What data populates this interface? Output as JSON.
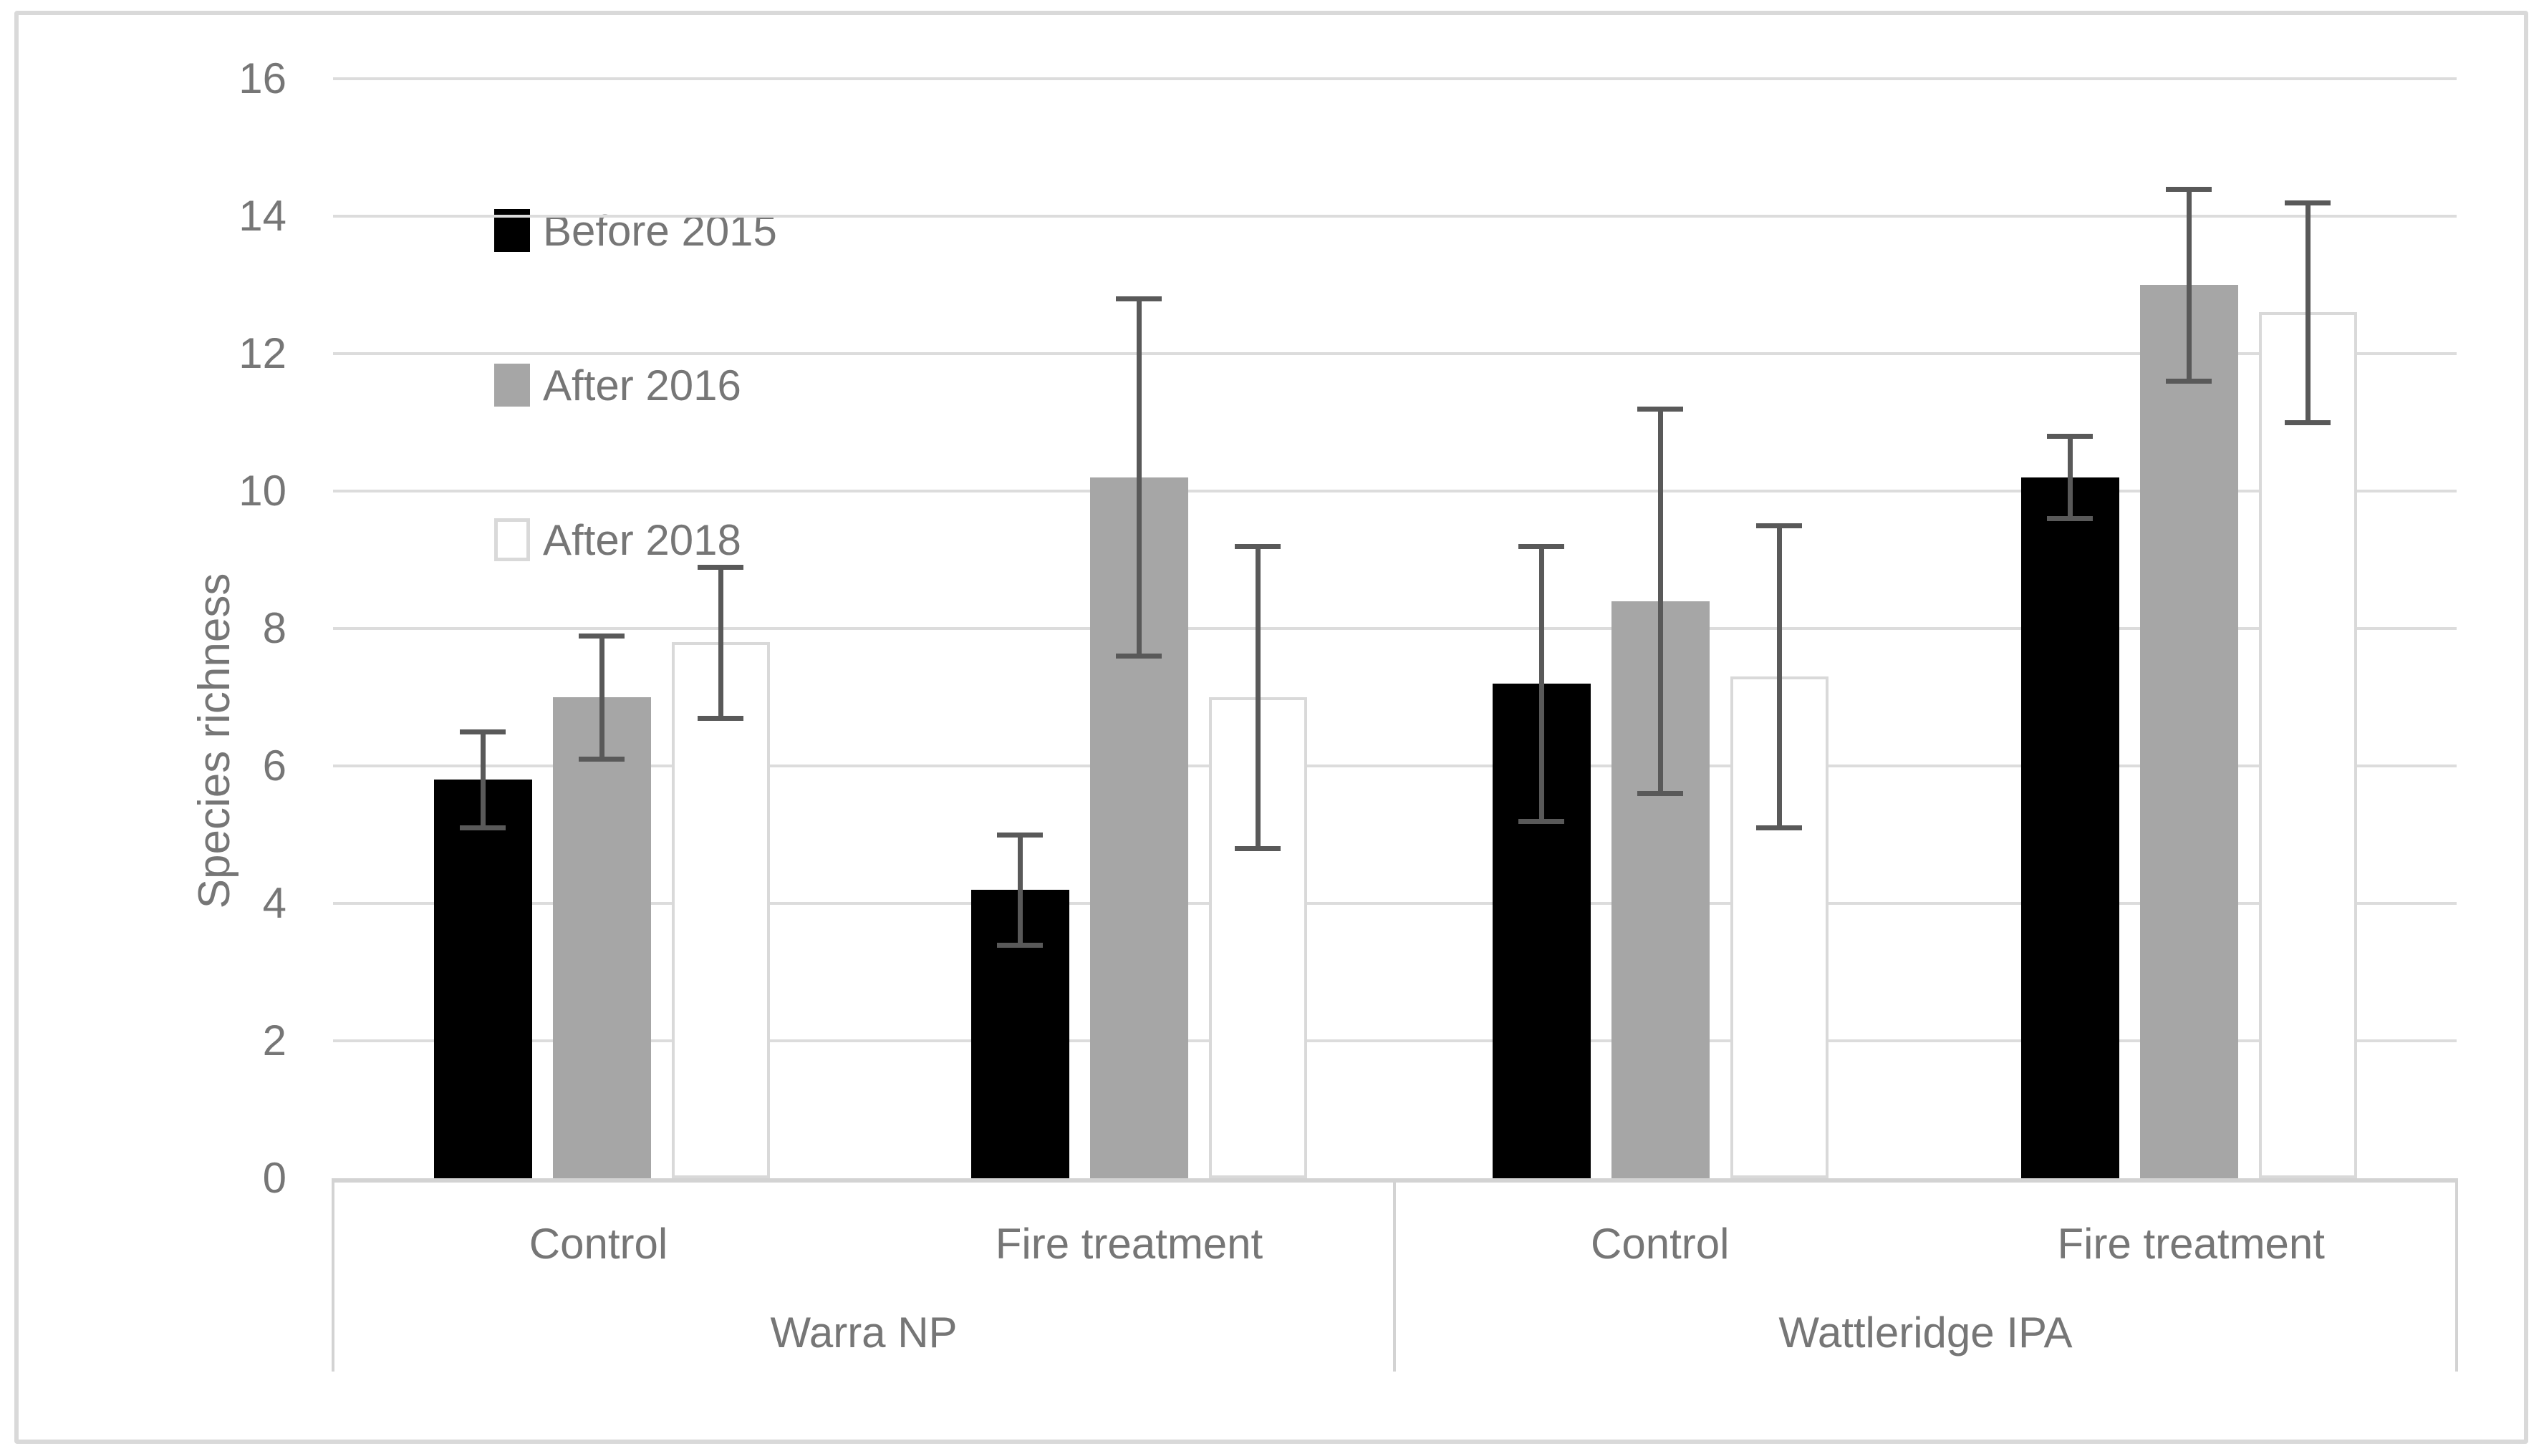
{
  "figure": {
    "border_color": "#d9d9d9",
    "background": "#ffffff"
  },
  "y_axis": {
    "title": "Species richness",
    "min": 0,
    "max": 16,
    "step": 2,
    "tick_labels": [
      "0",
      "2",
      "4",
      "6",
      "8",
      "10",
      "12",
      "14",
      "16"
    ]
  },
  "x_axis": {
    "sites": [
      {
        "label": "Warra NP",
        "treatments": [
          "Control",
          "Fire treatment"
        ]
      },
      {
        "label": "Wattleridge IPA",
        "treatments": [
          "Control",
          "Fire treatment"
        ]
      }
    ]
  },
  "legend": {
    "items": [
      {
        "label": "Before 2015",
        "fill": "#000000",
        "border": "#000000"
      },
      {
        "label": "After 2016",
        "fill": "#a6a6a6",
        "border": "#a6a6a6"
      },
      {
        "label": "After 2018",
        "fill": "#ffffff",
        "border": "#d9d9d9"
      }
    ]
  },
  "colors": {
    "gridline": "#dcdcdc",
    "axis_line": "#d3d3d3",
    "divider": "#d3d3d3",
    "error_bar": "#595959",
    "text": "#767676"
  },
  "chart_data": {
    "type": "bar",
    "title": "",
    "xlabel": "",
    "ylabel": "Species richness",
    "ylim": [
      0,
      16
    ],
    "grid": true,
    "error_bars": true,
    "legend_position": "top-left-inside",
    "categories": [
      "Warra NP - Control",
      "Warra NP - Fire treatment",
      "Wattleridge IPA - Control",
      "Wattleridge IPA - Fire treatment"
    ],
    "series": [
      {
        "name": "Before 2015",
        "values": [
          5.8,
          4.2,
          7.2,
          10.2
        ],
        "error_low": [
          5.1,
          3.4,
          5.2,
          9.6
        ],
        "error_high": [
          6.5,
          5.0,
          9.2,
          10.8
        ]
      },
      {
        "name": "After 2016",
        "values": [
          7.0,
          10.2,
          8.4,
          13.0
        ],
        "error_low": [
          6.1,
          7.6,
          5.6,
          11.6
        ],
        "error_high": [
          7.9,
          12.8,
          11.2,
          14.4
        ]
      },
      {
        "name": "After 2018",
        "values": [
          7.8,
          7.0,
          7.3,
          12.6
        ],
        "error_low": [
          6.7,
          4.8,
          5.1,
          11.0
        ],
        "error_high": [
          8.9,
          9.2,
          9.5,
          14.2
        ]
      }
    ]
  }
}
